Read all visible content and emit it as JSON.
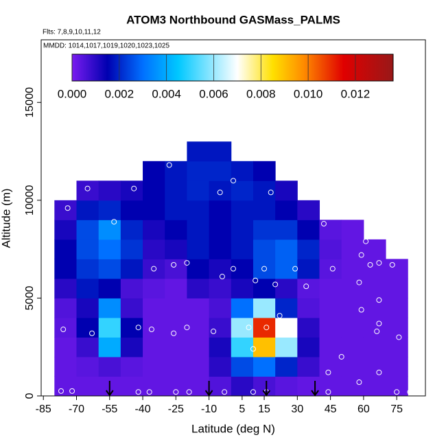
{
  "chart_data": {
    "type": "heatmap",
    "title": "ATOM3 Northbound GASMass_PALMS",
    "subtitle": "Flts: 7,8,9,10,11,12",
    "annotation": "MMDD: 1014,1017,1019,1020,1023,1025",
    "x_label": "Latitude (deg N)",
    "y_label": "Altitude (m)",
    "xlim": [
      -86,
      88
    ],
    "ylim": [
      0,
      18200
    ],
    "xticks": [
      -85,
      -70,
      -55,
      -40,
      -25,
      -10,
      5,
      15,
      30,
      45,
      60,
      75
    ],
    "yticks": [
      0,
      5000,
      10000,
      15000
    ],
    "x": [
      -75,
      -65,
      -55,
      -45,
      -35,
      -25,
      -15,
      -5,
      5,
      15,
      25,
      35,
      45,
      55,
      65,
      75
    ],
    "y": [
      500,
      1500,
      2500,
      3500,
      4500,
      5500,
      6500,
      7500,
      8500,
      9500,
      10500,
      11500,
      12500
    ],
    "z": [
      [
        0.0003,
        0.0003,
        0.0003,
        0.0003,
        0.0003,
        0.0003,
        0.0003,
        0.0005,
        0.001,
        0.0006,
        0.0004,
        0.0003,
        0.0003,
        0.0003,
        0.0003,
        0.0003
      ],
      [
        0.0003,
        0.0004,
        0.0006,
        0.0004,
        0.0003,
        0.0003,
        0.0003,
        0.001,
        0.0025,
        0.003,
        0.002,
        0.0008,
        0.0003,
        0.0003,
        0.0003,
        0.0003
      ],
      [
        0.0003,
        0.0008,
        0.004,
        0.0012,
        0.0003,
        0.0003,
        0.0003,
        0.0012,
        0.005,
        0.009,
        0.006,
        0.0012,
        0.0003,
        0.0003,
        0.0003,
        0.0003
      ],
      [
        0.0004,
        0.0015,
        0.005,
        0.0015,
        0.0003,
        0.0003,
        0.0003,
        0.0008,
        0.006,
        0.011,
        0.007,
        0.001,
        0.0003,
        0.0003,
        0.0003,
        0.0003
      ],
      [
        0.0005,
        0.0012,
        0.0035,
        0.0008,
        0.0003,
        0.0003,
        0.0003,
        0.0006,
        0.003,
        0.006,
        0.002,
        0.0005,
        0.0003,
        0.0003,
        0.0003,
        0.0003
      ],
      [
        0.001,
        0.0018,
        0.0015,
        0.0006,
        0.0004,
        0.0003,
        0.001,
        0.0008,
        0.0012,
        0.0015,
        0.001,
        0.0004,
        0.0003,
        0.0003,
        0.0003,
        0.0003
      ],
      [
        0.0015,
        0.0022,
        0.0025,
        0.0018,
        0.0008,
        0.0006,
        0.0015,
        0.0012,
        0.0015,
        0.0025,
        0.0028,
        0.0018,
        0.0004,
        0.0003,
        0.0003,
        0.0003
      ],
      [
        0.0015,
        0.0025,
        0.003,
        0.0022,
        0.001,
        0.0012,
        0.0018,
        0.0015,
        0.0018,
        0.0025,
        0.0028,
        0.002,
        0.0005,
        0.0003,
        0.0003,
        null
      ],
      [
        0.0012,
        0.0025,
        0.0035,
        0.002,
        0.0012,
        0.0015,
        0.0018,
        0.0015,
        0.0018,
        0.0022,
        0.0022,
        0.0015,
        0.0004,
        0.0003,
        null,
        null
      ],
      [
        0.0008,
        0.0018,
        0.002,
        0.0015,
        0.0015,
        0.0018,
        0.0018,
        0.0015,
        0.0018,
        0.0018,
        0.0015,
        0.001,
        null,
        null,
        null,
        null
      ],
      [
        null,
        0.0008,
        0.001,
        0.0012,
        0.0015,
        0.0018,
        0.002,
        0.0018,
        0.002,
        0.0018,
        0.0012,
        null,
        null,
        null,
        null,
        null
      ],
      [
        null,
        null,
        null,
        null,
        0.0015,
        0.0018,
        0.002,
        0.002,
        0.0018,
        0.0015,
        null,
        null,
        null,
        null,
        null,
        null
      ],
      [
        null,
        null,
        null,
        null,
        null,
        null,
        0.0018,
        0.0018,
        null,
        null,
        null,
        null,
        null,
        null,
        null,
        null
      ]
    ],
    "points": {
      "x": [
        -77,
        -72,
        -76,
        -74,
        -65,
        -44,
        -28,
        -53,
        -63,
        -35,
        -26,
        -20,
        -36,
        -26,
        -20,
        -42,
        -5,
        1,
        -4,
        1,
        -8,
        18,
        11,
        15,
        20,
        29,
        34,
        22,
        8,
        10,
        16,
        42,
        46,
        50,
        44,
        61,
        59,
        63,
        58,
        59,
        67,
        73,
        67,
        67,
        66,
        76,
        67,
        58,
        44,
        10,
        16,
        -3,
        -42,
        -37,
        -25,
        -19,
        75,
        81,
        68
      ],
      "y": [
        250,
        250,
        3400,
        9600,
        10600,
        10600,
        11800,
        8900,
        3200,
        6500,
        6700,
        6800,
        3400,
        3200,
        3500,
        3500,
        10400,
        11000,
        6100,
        6500,
        3300,
        10400,
        5900,
        6500,
        5700,
        6500,
        5600,
        4100,
        3500,
        2400,
        3500,
        8800,
        6500,
        2000,
        1200,
        7900,
        7200,
        6700,
        5800,
        4400,
        6800,
        6700,
        4900,
        3700,
        3300,
        3000,
        1200,
        700,
        200,
        200,
        200,
        200,
        200,
        200,
        200,
        200,
        200,
        200,
        8500
      ]
    },
    "flight_marks": [
      -55,
      -10,
      16,
      38
    ],
    "colorbar": {
      "lim": [
        0,
        0.0136
      ],
      "ticks": [
        {
          "value": 0,
          "label": "0.000"
        },
        {
          "value": 0.002,
          "label": "0.002"
        },
        {
          "value": 0.004,
          "label": "0.004"
        },
        {
          "value": 0.006,
          "label": "0.006"
        },
        {
          "value": 0.008,
          "label": "0.008"
        },
        {
          "value": 0.01,
          "label": "0.010"
        },
        {
          "value": 0.012,
          "label": "0.012"
        }
      ]
    },
    "colorscale": [
      [
        0,
        "#7a1cf0"
      ],
      [
        0.0015,
        "#0000b0"
      ],
      [
        0.003,
        "#0070ff"
      ],
      [
        0.0045,
        "#00c8ff"
      ],
      [
        0.007,
        "#ffffff"
      ],
      [
        0.0085,
        "#ffe000"
      ],
      [
        0.0098,
        "#ff8c00"
      ],
      [
        0.0115,
        "#e00000"
      ],
      [
        0.0136,
        "#981818"
      ]
    ]
  }
}
